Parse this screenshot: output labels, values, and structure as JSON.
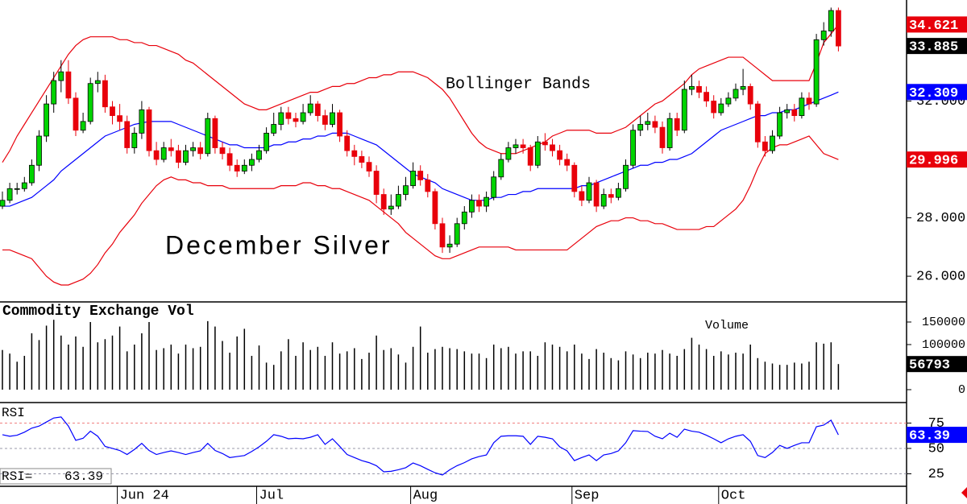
{
  "chart_data": [
    {
      "type": "candlestick",
      "title": "December Silver",
      "annotation": "Bollinger Bands",
      "categories": [
        null,
        null,
        null,
        null,
        null,
        null,
        null,
        null,
        null,
        null,
        null,
        null,
        null,
        null,
        null,
        null,
        "Jun 24",
        null,
        null,
        null,
        null,
        null,
        null,
        null,
        null,
        null,
        null,
        null,
        null,
        null,
        null,
        null,
        null,
        null,
        null,
        "Jul",
        null,
        null,
        null,
        null,
        null,
        null,
        null,
        null,
        null,
        null,
        null,
        null,
        null,
        null,
        null,
        null,
        null,
        null,
        null,
        null,
        "Aug",
        null,
        null,
        null,
        null,
        null,
        null,
        null,
        null,
        null,
        null,
        null,
        null,
        null,
        null,
        null,
        null,
        null,
        null,
        null,
        null,
        null,
        "Sep",
        null,
        null,
        null,
        null,
        null,
        null,
        null,
        null,
        null,
        null,
        null,
        null,
        null,
        null,
        null,
        null,
        null,
        null,
        null,
        "Oct",
        null,
        null,
        null,
        null,
        null,
        null,
        null,
        null,
        null,
        null,
        null,
        null,
        null,
        null,
        null,
        null
      ],
      "open": [
        28.4,
        28.6,
        29.0,
        29.0,
        29.2,
        29.8,
        30.8,
        31.9,
        32.7,
        33.0,
        32.1,
        31.0,
        31.3,
        32.6,
        32.7,
        31.8,
        31.5,
        31.3,
        30.4,
        30.9,
        31.7,
        30.3,
        30.0,
        30.4,
        30.3,
        29.9,
        30.3,
        30.4,
        30.2,
        31.4,
        30.4,
        30.2,
        29.8,
        29.6,
        29.8,
        30.0,
        30.3,
        30.9,
        31.2,
        31.6,
        31.4,
        31.3,
        31.6,
        31.9,
        31.5,
        31.2,
        31.6,
        30.8,
        30.3,
        30.1,
        29.9,
        29.6,
        28.8,
        28.3,
        28.4,
        28.8,
        29.1,
        29.6,
        29.3,
        28.9,
        27.8,
        27.0,
        27.1,
        27.8,
        28.2,
        28.6,
        28.4,
        28.7,
        29.4,
        30.0,
        30.4,
        30.5,
        30.4,
        29.8,
        30.6,
        30.5,
        30.3,
        30.0,
        29.8,
        28.9,
        28.6,
        29.2,
        28.4,
        28.8,
        28.7,
        29.0,
        29.8,
        31.0,
        31.2,
        31.3,
        31.1,
        30.4,
        31.4,
        31.0,
        32.4,
        32.5,
        32.3,
        32.0,
        31.6,
        31.9,
        32.1,
        32.4,
        32.5,
        31.9,
        30.6,
        30.3,
        30.8,
        31.6,
        31.7,
        31.5,
        32.1,
        31.9,
        34.1,
        34.4,
        35.1
      ],
      "high": [
        28.9,
        29.2,
        29.2,
        29.4,
        30.0,
        31.0,
        32.2,
        33.0,
        33.4,
        33.4,
        32.3,
        31.6,
        32.8,
        33.0,
        32.9,
        32.0,
        31.9,
        31.5,
        31.1,
        32.0,
        31.8,
        30.6,
        30.6,
        30.7,
        30.5,
        30.5,
        30.6,
        30.6,
        31.6,
        31.5,
        30.6,
        30.4,
        30.0,
        30.0,
        30.2,
        30.5,
        31.1,
        31.6,
        31.8,
        31.8,
        31.6,
        31.9,
        32.2,
        32.0,
        31.7,
        31.9,
        31.7,
        31.0,
        30.5,
        30.3,
        30.1,
        29.8,
        29.0,
        28.8,
        29.1,
        29.4,
        29.9,
        29.8,
        29.5,
        29.0,
        28.0,
        27.4,
        28.0,
        28.4,
        28.8,
        28.8,
        28.9,
        29.6,
        30.2,
        30.6,
        30.7,
        30.7,
        30.5,
        30.8,
        30.9,
        30.7,
        30.5,
        30.2,
        29.9,
        29.1,
        29.4,
        29.3,
        29.0,
        29.0,
        29.2,
        30.0,
        31.2,
        31.5,
        31.6,
        31.5,
        31.3,
        31.6,
        31.6,
        32.7,
        32.9,
        32.7,
        32.5,
        32.2,
        32.1,
        32.3,
        32.6,
        33.1,
        32.6,
        32.0,
        30.8,
        31.0,
        31.8,
        31.9,
        31.9,
        32.3,
        32.3,
        34.3,
        34.7,
        35.2,
        35.2
      ],
      "low": [
        28.3,
        28.5,
        28.8,
        28.9,
        29.1,
        29.6,
        30.6,
        31.6,
        32.3,
        31.9,
        30.8,
        30.9,
        31.2,
        32.3,
        31.6,
        31.2,
        31.0,
        30.2,
        30.2,
        30.7,
        30.1,
        29.8,
        29.9,
        30.1,
        29.7,
        29.8,
        30.1,
        30.0,
        30.1,
        30.2,
        30.0,
        29.6,
        29.4,
        29.5,
        29.6,
        29.9,
        30.2,
        30.8,
        31.0,
        31.2,
        31.1,
        31.2,
        31.5,
        31.3,
        31.0,
        31.1,
        30.6,
        30.1,
        29.8,
        29.7,
        29.4,
        28.5,
        28.1,
        28.1,
        28.3,
        28.6,
        29.0,
        29.1,
        28.7,
        27.6,
        26.8,
        26.8,
        27.0,
        27.6,
        28.0,
        28.2,
        28.2,
        28.6,
        29.3,
        29.9,
        30.2,
        30.2,
        29.6,
        29.7,
        30.3,
        30.1,
        29.8,
        29.6,
        28.7,
        28.4,
        28.5,
        28.2,
        28.3,
        28.5,
        28.6,
        28.9,
        29.7,
        30.8,
        31.0,
        30.9,
        30.2,
        30.3,
        30.8,
        30.9,
        32.2,
        32.1,
        31.8,
        31.4,
        31.5,
        31.8,
        32.0,
        32.2,
        31.7,
        30.4,
        30.1,
        30.2,
        30.7,
        31.4,
        31.3,
        31.4,
        31.7,
        31.8,
        33.9,
        34.2,
        33.7
      ],
      "close": [
        28.6,
        29.0,
        29.0,
        29.2,
        29.8,
        30.8,
        31.9,
        32.7,
        33.0,
        32.1,
        31.0,
        31.3,
        32.6,
        32.7,
        31.8,
        31.5,
        31.3,
        30.4,
        30.9,
        31.7,
        30.3,
        30.0,
        30.4,
        30.3,
        29.9,
        30.3,
        30.4,
        30.2,
        31.4,
        30.4,
        30.2,
        29.8,
        29.6,
        29.8,
        30.0,
        30.3,
        30.9,
        31.2,
        31.6,
        31.4,
        31.3,
        31.6,
        31.9,
        31.5,
        31.2,
        31.6,
        30.8,
        30.3,
        30.1,
        29.9,
        29.6,
        28.8,
        28.3,
        28.4,
        28.8,
        29.1,
        29.6,
        29.3,
        28.9,
        27.8,
        27.0,
        27.1,
        27.8,
        28.2,
        28.6,
        28.4,
        28.7,
        29.4,
        30.0,
        30.4,
        30.5,
        30.4,
        29.8,
        30.6,
        30.5,
        30.3,
        30.0,
        29.8,
        28.9,
        28.6,
        29.2,
        28.4,
        28.8,
        28.7,
        29.0,
        29.8,
        31.0,
        31.2,
        31.3,
        31.1,
        30.4,
        31.4,
        31.0,
        32.4,
        32.5,
        32.3,
        32.0,
        31.6,
        31.9,
        32.1,
        32.4,
        32.5,
        31.9,
        30.6,
        30.3,
        30.8,
        31.6,
        31.7,
        31.5,
        32.1,
        31.9,
        34.1,
        34.4,
        35.1,
        33.885
      ],
      "up_color": "#00d400",
      "down_color": "#e8000b",
      "close_color": "#000000",
      "series": [
        {
          "color": "#e8000b",
          "values": [
            29.9,
            30.3,
            30.8,
            31.2,
            31.6,
            32.0,
            32.4,
            32.8,
            33.2,
            33.6,
            33.9,
            34.1,
            34.2,
            34.2,
            34.2,
            34.2,
            34.1,
            34.1,
            34.0,
            34.0,
            33.9,
            33.9,
            33.8,
            33.7,
            33.6,
            33.4,
            33.3,
            33.1,
            32.9,
            32.7,
            32.5,
            32.3,
            32.1,
            31.9,
            31.8,
            31.7,
            31.7,
            31.8,
            31.9,
            32.0,
            32.1,
            32.2,
            32.3,
            32.3,
            32.4,
            32.5,
            32.5,
            32.6,
            32.6,
            32.7,
            32.8,
            32.8,
            32.9,
            32.9,
            33.0,
            33.0,
            33.0,
            32.9,
            32.8,
            32.6,
            32.4,
            32.1,
            31.7,
            31.3,
            30.9,
            30.6,
            30.4,
            30.3,
            30.2,
            30.2,
            30.2,
            30.3,
            30.4,
            30.5,
            30.6,
            30.8,
            30.9,
            31.0,
            31.0,
            31.0,
            31.0,
            30.9,
            30.9,
            30.9,
            31.0,
            31.1,
            31.3,
            31.5,
            31.7,
            31.9,
            32.0,
            32.2,
            32.4,
            32.6,
            32.9,
            33.1,
            33.2,
            33.3,
            33.4,
            33.5,
            33.5,
            33.5,
            33.3,
            33.1,
            32.9,
            32.7,
            32.7,
            32.7,
            32.7,
            32.7,
            32.7,
            33.3,
            34.0,
            34.3,
            34.621
          ]
        },
        {
          "color": "#0000ff",
          "values": [
            28.4,
            28.4,
            28.5,
            28.6,
            28.7,
            28.9,
            29.1,
            29.3,
            29.6,
            29.8,
            30.0,
            30.2,
            30.4,
            30.6,
            30.8,
            30.9,
            31.0,
            31.1,
            31.2,
            31.25,
            31.3,
            31.3,
            31.3,
            31.3,
            31.2,
            31.1,
            31.0,
            30.9,
            30.8,
            30.7,
            30.6,
            30.5,
            30.5,
            30.4,
            30.4,
            30.4,
            30.4,
            30.5,
            30.5,
            30.6,
            30.6,
            30.7,
            30.7,
            30.8,
            30.8,
            30.9,
            30.9,
            30.9,
            30.8,
            30.7,
            30.6,
            30.5,
            30.3,
            30.1,
            29.9,
            29.7,
            29.5,
            29.4,
            29.3,
            29.2,
            29.0,
            28.9,
            28.8,
            28.7,
            28.6,
            28.6,
            28.6,
            28.7,
            28.7,
            28.8,
            28.8,
            28.9,
            28.9,
            29.0,
            29.0,
            29.0,
            29.0,
            29.0,
            29.0,
            29.1,
            29.1,
            29.2,
            29.3,
            29.4,
            29.5,
            29.6,
            29.7,
            29.8,
            29.8,
            29.9,
            29.9,
            30.0,
            30.0,
            30.1,
            30.2,
            30.4,
            30.6,
            30.8,
            31.0,
            31.1,
            31.2,
            31.3,
            31.4,
            31.5,
            31.5,
            31.6,
            31.6,
            31.7,
            31.7,
            31.8,
            31.9,
            32.0,
            32.1,
            32.2,
            32.309
          ]
        },
        {
          "color": "#e8000b",
          "values": [
            26.9,
            26.9,
            26.8,
            26.7,
            26.6,
            26.3,
            26.0,
            25.8,
            25.7,
            25.7,
            25.8,
            25.9,
            26.1,
            26.4,
            26.8,
            27.1,
            27.5,
            27.8,
            28.1,
            28.5,
            28.8,
            29.1,
            29.3,
            29.4,
            29.3,
            29.3,
            29.2,
            29.2,
            29.1,
            29.1,
            29.1,
            29.0,
            29.0,
            29.0,
            29.0,
            29.0,
            29.0,
            29.0,
            29.1,
            29.1,
            29.1,
            29.2,
            29.2,
            29.1,
            29.1,
            29.0,
            29.0,
            28.9,
            28.8,
            28.7,
            28.6,
            28.4,
            28.2,
            28.0,
            27.8,
            27.5,
            27.3,
            27.1,
            26.9,
            26.7,
            26.6,
            26.6,
            26.7,
            26.8,
            26.9,
            27.0,
            27.0,
            27.0,
            27.0,
            27.0,
            26.9,
            26.9,
            26.9,
            26.9,
            26.9,
            26.9,
            26.9,
            26.9,
            27.1,
            27.3,
            27.5,
            27.7,
            27.8,
            27.9,
            27.9,
            28.0,
            28.0,
            27.9,
            27.9,
            27.8,
            27.8,
            27.7,
            27.6,
            27.6,
            27.6,
            27.6,
            27.7,
            27.7,
            27.9,
            28.1,
            28.3,
            28.6,
            29.1,
            29.7,
            30.2,
            30.4,
            30.5,
            30.5,
            30.6,
            30.7,
            30.8,
            30.5,
            30.2,
            30.1,
            29.996
          ]
        }
      ],
      "ylim": [
        25.12,
        35.46
      ],
      "yticks": [
        {
          "value": 26,
          "label": "26.000"
        },
        {
          "value": 28,
          "label": "28.000"
        },
        {
          "value": 32,
          "label": "32.000"
        }
      ]
    },
    {
      "type": "bar",
      "title": "Commodity Exchange Vol",
      "label": "Volume",
      "color": "#000000",
      "values": [
        88000,
        80000,
        62000,
        75000,
        125000,
        110000,
        142000,
        155000,
        120000,
        100000,
        118000,
        95000,
        150000,
        105000,
        112000,
        120000,
        140000,
        85000,
        100000,
        125000,
        150000,
        88000,
        92000,
        100000,
        80000,
        100000,
        92000,
        95000,
        152000,
        140000,
        108000,
        82000,
        118000,
        135000,
        75000,
        98000,
        60000,
        55000,
        85000,
        112000,
        75000,
        105000,
        88000,
        95000,
        75000,
        105000,
        80000,
        85000,
        92000,
        68000,
        82000,
        120000,
        88000,
        92000,
        78000,
        60000,
        95000,
        140000,
        82000,
        90000,
        95000,
        92000,
        90000,
        85000,
        80000,
        80000,
        70000,
        100000,
        92000,
        95000,
        80000,
        85000,
        85000,
        75000,
        105000,
        100000,
        95000,
        85000,
        100000,
        80000,
        68000,
        90000,
        82000,
        70000,
        65000,
        85000,
        78000,
        70000,
        82000,
        80000,
        88000,
        80000,
        75000,
        90000,
        115000,
        100000,
        90000,
        75000,
        85000,
        78000,
        82000,
        80000,
        100000,
        70000,
        62000,
        58000,
        55000,
        55000,
        60000,
        58000,
        62000,
        105000,
        102000,
        105000,
        56793
      ],
      "ylim": [
        -28600,
        194600
      ],
      "yticks": [
        150000,
        100000,
        0
      ]
    },
    {
      "type": "line",
      "title": "RSI",
      "value_label": "RSI=",
      "color": "#0000ff",
      "values": [
        63.5,
        62.0,
        63.0,
        66.0,
        70.0,
        72.0,
        76.0,
        80.0,
        81.0,
        72.0,
        58.0,
        60.0,
        67.0,
        62.0,
        52.0,
        50.0,
        48.0,
        44.0,
        49.0,
        55.0,
        48.0,
        44.0,
        46.0,
        47.6,
        46.0,
        44.0,
        46.0,
        47.6,
        55.0,
        48.0,
        45.0,
        41.0,
        42.0,
        43.0,
        47.0,
        51.6,
        57.0,
        63.5,
        62.0,
        59.5,
        60.0,
        59.5,
        61.0,
        63.5,
        54.0,
        59.5,
        52.0,
        44.0,
        41.0,
        38.0,
        36.0,
        33.0,
        27.0,
        27.5,
        29.0,
        31.0,
        35.7,
        33.0,
        29.4,
        26.0,
        23.8,
        29.0,
        33.0,
        36.0,
        39.7,
        42.0,
        43.6,
        55.6,
        62.0,
        62.5,
        62.5,
        62.0,
        54.0,
        62.0,
        61.0,
        59.5,
        51.6,
        47.6,
        38.0,
        41.0,
        43.6,
        38.0,
        43.6,
        45.0,
        47.6,
        55.6,
        67.5,
        67.0,
        66.7,
        62.0,
        59.5,
        65.0,
        61.0,
        69.0,
        67.0,
        66.0,
        63.0,
        59.5,
        55.6,
        59.5,
        62.0,
        63.5,
        57.0,
        43.0,
        41.0,
        46.0,
        53.0,
        50.0,
        53.0,
        55.6,
        55.6,
        71.4,
        73.0,
        77.8,
        63.39
      ],
      "ylim": [
        12.7,
        95.2
      ],
      "yticks": [
        75,
        50,
        25
      ],
      "grid": true,
      "grid_colors": [
        "#f08080",
        "#9999aa",
        "#9999aa"
      ]
    }
  ]
}
